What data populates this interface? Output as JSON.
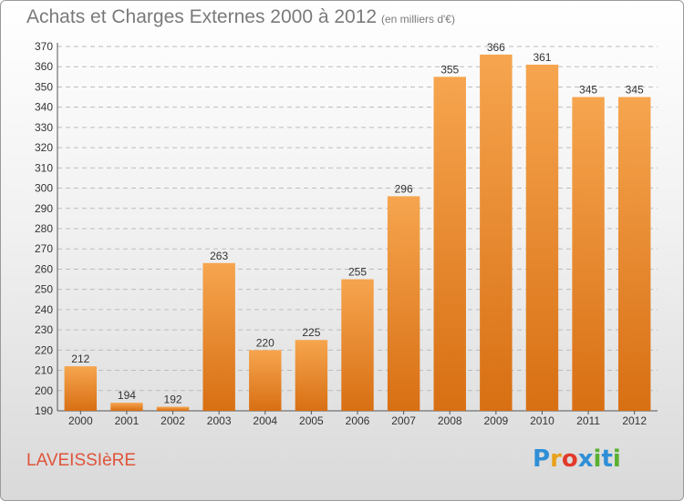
{
  "header": {
    "title": "Achats et Charges Externes 2000 à 2012",
    "subtitle": "(en milliers d'€)"
  },
  "footer": {
    "commune": "LAVEISSIèRE",
    "logo_letters": [
      "P",
      "r",
      "o",
      "x",
      "i",
      "t",
      "i"
    ]
  },
  "colors": {
    "bar_light": "#f6a54f",
    "bar_dark": "#d86f13",
    "logo": [
      "#2f8fd6",
      "#e8a21a",
      "#e23a2a",
      "#2f8fd6",
      "#5ab030",
      "#2f8fd6",
      "#5ab030"
    ]
  },
  "chart_data": {
    "type": "bar",
    "title": "Achats et Charges Externes 2000 à 2012",
    "subtitle": "(en milliers d'€)",
    "categories": [
      "2000",
      "2001",
      "2002",
      "2003",
      "2004",
      "2005",
      "2006",
      "2007",
      "2008",
      "2009",
      "2010",
      "2011",
      "2012"
    ],
    "values": [
      212,
      194,
      192,
      263,
      220,
      225,
      255,
      296,
      355,
      366,
      361,
      345,
      345
    ],
    "xlabel": "",
    "ylabel": "",
    "ylim": [
      190,
      370
    ],
    "yticks": [
      190,
      200,
      210,
      220,
      230,
      240,
      250,
      260,
      270,
      280,
      290,
      300,
      310,
      320,
      330,
      340,
      350,
      360,
      370
    ],
    "grid": true,
    "legend": "none",
    "data_labels": true
  }
}
